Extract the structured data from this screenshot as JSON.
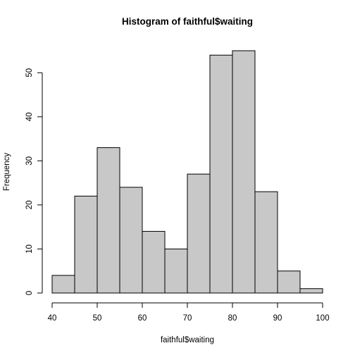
{
  "chart_data": {
    "type": "histogram",
    "title": "Histogram of faithful$waiting",
    "xlabel": "faithful$waiting",
    "ylabel": "Frequency",
    "bins": [
      {
        "x0": 40,
        "x1": 45,
        "count": 4
      },
      {
        "x0": 45,
        "x1": 50,
        "count": 22
      },
      {
        "x0": 50,
        "x1": 55,
        "count": 33
      },
      {
        "x0": 55,
        "x1": 60,
        "count": 24
      },
      {
        "x0": 60,
        "x1": 65,
        "count": 14
      },
      {
        "x0": 65,
        "x1": 70,
        "count": 10
      },
      {
        "x0": 70,
        "x1": 75,
        "count": 27
      },
      {
        "x0": 75,
        "x1": 80,
        "count": 54
      },
      {
        "x0": 80,
        "x1": 85,
        "count": 55
      },
      {
        "x0": 85,
        "x1": 90,
        "count": 23
      },
      {
        "x0": 90,
        "x1": 95,
        "count": 5
      },
      {
        "x0": 95,
        "x1": 100,
        "count": 1
      }
    ],
    "xlim": [
      40,
      100
    ],
    "ylim": [
      0,
      55
    ],
    "x_ticks": [
      40,
      50,
      60,
      70,
      80,
      90,
      100
    ],
    "y_ticks": [
      0,
      10,
      20,
      30,
      40,
      50
    ],
    "grid": false,
    "bar_color": "#c8c8c8"
  }
}
